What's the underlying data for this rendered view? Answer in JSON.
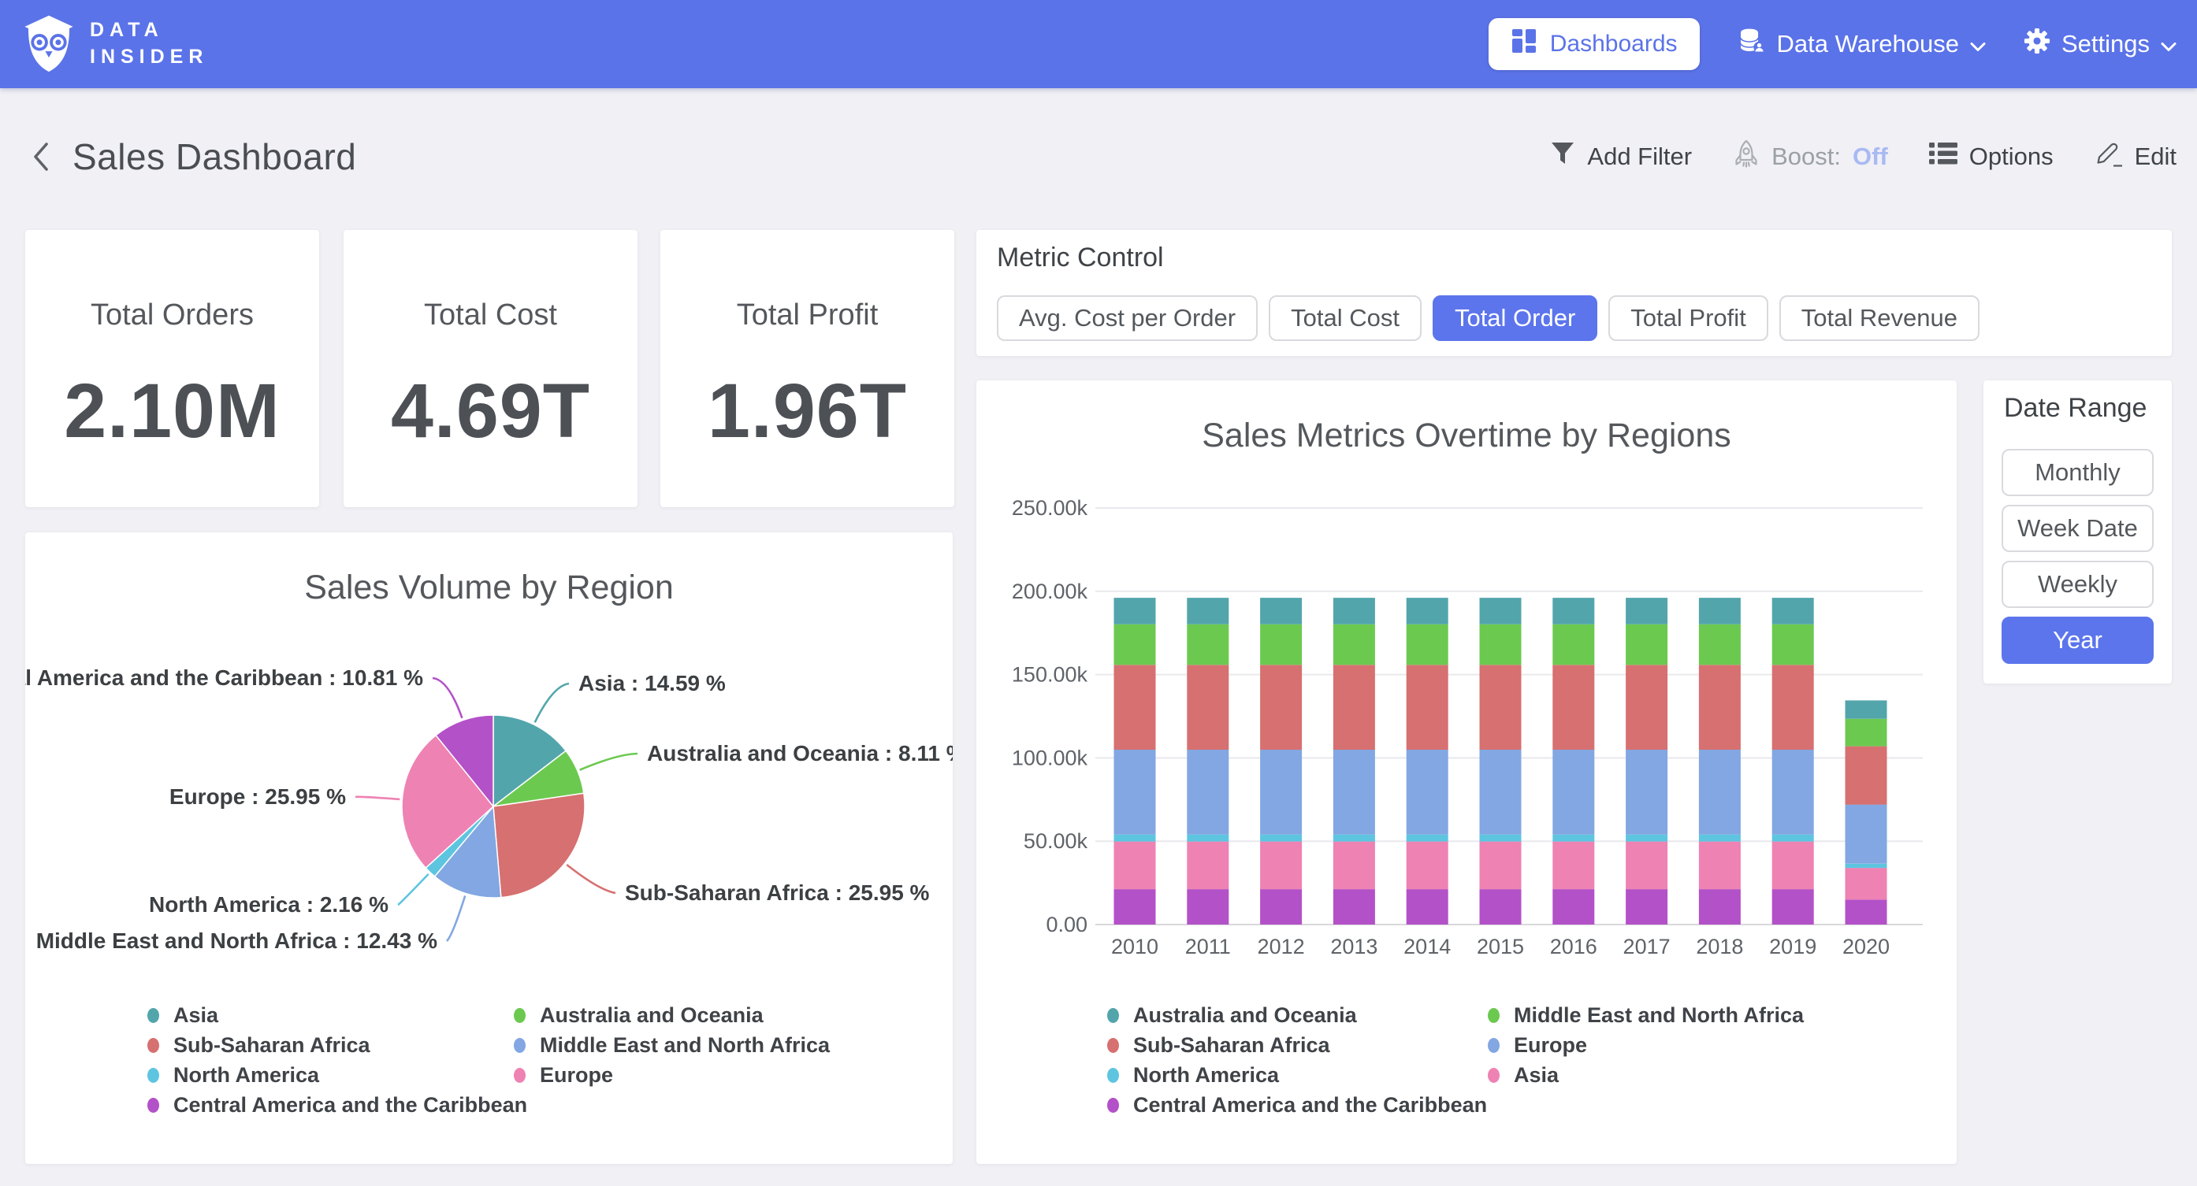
{
  "brand": {
    "line1": "DATA",
    "line2": "INSIDER"
  },
  "nav": {
    "dashboards_label": "Dashboards",
    "data_warehouse_label": "Data Warehouse",
    "settings_label": "Settings"
  },
  "header": {
    "title": "Sales Dashboard",
    "add_filter_label": "Add Filter",
    "boost_label": "Boost:",
    "boost_value": "Off",
    "options_label": "Options",
    "edit_label": "Edit"
  },
  "kpis": [
    {
      "label": "Total Orders",
      "value": "2.10M"
    },
    {
      "label": "Total Cost",
      "value": "4.69T"
    },
    {
      "label": "Total Profit",
      "value": "1.96T"
    }
  ],
  "metric_control": {
    "title": "Metric Control",
    "options": [
      "Avg. Cost per Order",
      "Total Cost",
      "Total Order",
      "Total Profit",
      "Total Revenue"
    ],
    "selected": "Total Order"
  },
  "date_range": {
    "title": "Date Range",
    "options": [
      "Monthly",
      "Week Date",
      "Weekly",
      "Year"
    ],
    "selected": "Year"
  },
  "colors": {
    "nav_blue": "#5b73e8",
    "selected_button_blue": "#5c75ec",
    "boost_off_text": "#a9b9f2",
    "page_background": "#f0f0f5"
  },
  "chart_data": [
    {
      "type": "pie",
      "title": "Sales Volume by Region",
      "label_format": "{label} : {value} %",
      "slices": [
        {
          "label": "Asia",
          "value": 14.59,
          "color": "#53a5ac"
        },
        {
          "label": "Australia and Oceania",
          "value": 8.11,
          "color": "#6cc950"
        },
        {
          "label": "Sub-Saharan Africa",
          "value": 25.95,
          "color": "#d77070"
        },
        {
          "label": "Middle East and North Africa",
          "value": 12.43,
          "color": "#82a7e2"
        },
        {
          "label": "North America",
          "value": 2.16,
          "color": "#5ec5e0"
        },
        {
          "label": "Europe",
          "value": 25.95,
          "color": "#ee82b3"
        },
        {
          "label": "Central America and the Caribbean",
          "value": 10.81,
          "color": "#b351c8"
        }
      ],
      "legend": {
        "col1": [
          "Asia",
          "Sub-Saharan Africa",
          "North America",
          "Central America and the Caribbean"
        ],
        "col2": [
          "Australia and Oceania",
          "Middle East and North Africa",
          "Europe"
        ]
      }
    },
    {
      "type": "bar",
      "stacked": true,
      "title": "Sales Metrics Overtime by Regions",
      "categories": [
        "2010",
        "2011",
        "2012",
        "2013",
        "2014",
        "2015",
        "2016",
        "2017",
        "2018",
        "2019",
        "2020"
      ],
      "series": [
        {
          "name": "Central America and the Caribbean",
          "color": "#b351c8",
          "values": [
            21200,
            21200,
            21200,
            21200,
            21200,
            21200,
            21200,
            21200,
            21200,
            21200,
            15000
          ]
        },
        {
          "name": "Asia",
          "color": "#ee82b3",
          "values": [
            28600,
            28600,
            28600,
            28600,
            28600,
            28600,
            28600,
            28600,
            28600,
            28600,
            19000
          ]
        },
        {
          "name": "North America",
          "color": "#5ec5e0",
          "values": [
            4200,
            4200,
            4200,
            4200,
            4200,
            4200,
            4200,
            4200,
            4200,
            4200,
            2500
          ]
        },
        {
          "name": "Europe",
          "color": "#82a7e2",
          "values": [
            50900,
            50900,
            50900,
            50900,
            50900,
            50900,
            50900,
            50900,
            50900,
            50900,
            35500
          ]
        },
        {
          "name": "Sub-Saharan Africa",
          "color": "#d77070",
          "values": [
            50900,
            50900,
            50900,
            50900,
            50900,
            50900,
            50900,
            50900,
            50900,
            50900,
            35000
          ]
        },
        {
          "name": "Middle East and North Africa",
          "color": "#6cc950",
          "values": [
            24400,
            24400,
            24400,
            24400,
            24400,
            24400,
            24400,
            24400,
            24400,
            24400,
            16500
          ]
        },
        {
          "name": "Australia and Oceania",
          "color": "#53a5ac",
          "values": [
            15900,
            15900,
            15900,
            15900,
            15900,
            15900,
            15900,
            15900,
            15900,
            15900,
            11000
          ]
        }
      ],
      "ylim": [
        0,
        250000
      ],
      "grid": true,
      "y_ticks": {
        "values": [
          0,
          50000,
          100000,
          150000,
          200000,
          250000
        ],
        "labels": [
          "0.00",
          "50.00k",
          "100.00k",
          "150.00k",
          "200.00k",
          "250.00k"
        ]
      },
      "legend": {
        "col1": [
          "Australia and Oceania",
          "Sub-Saharan Africa",
          "North America",
          "Central America and the Caribbean"
        ],
        "col2": [
          "Middle East and North Africa",
          "Europe",
          "Asia"
        ]
      }
    }
  ]
}
